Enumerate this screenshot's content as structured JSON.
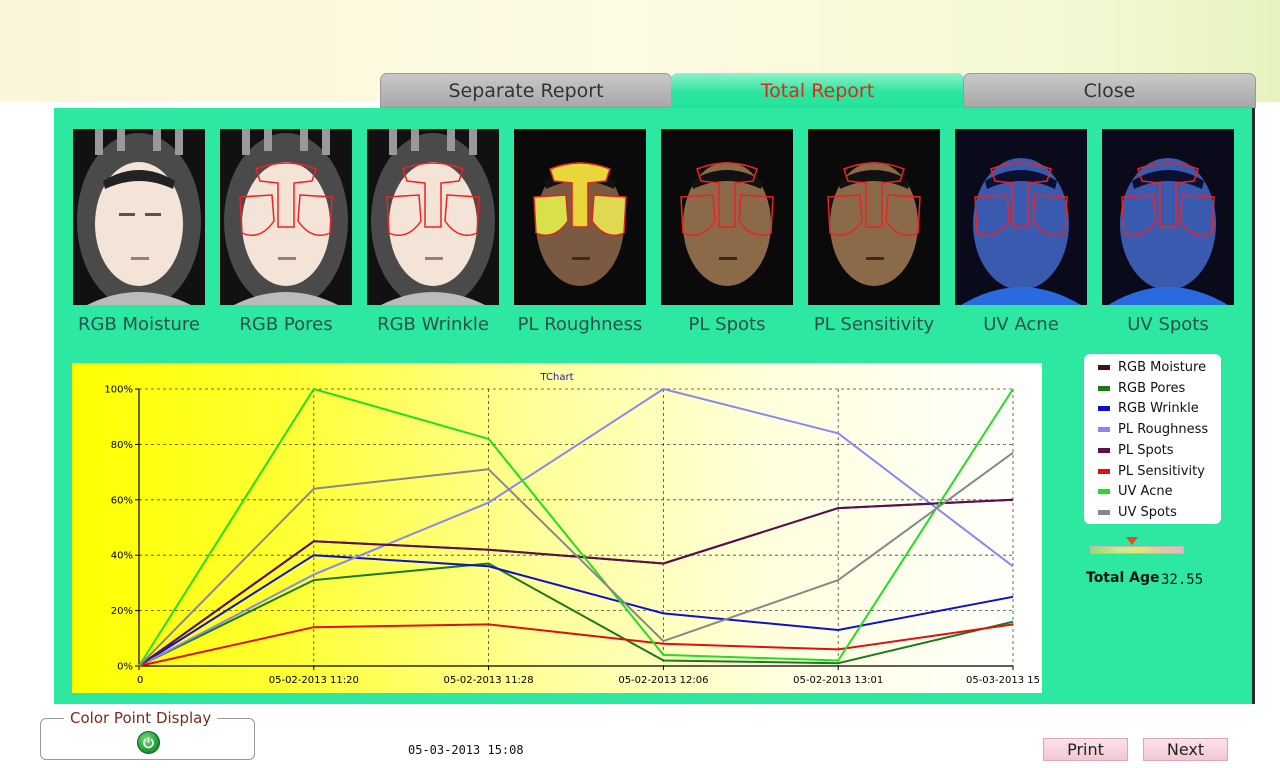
{
  "tabs": [
    {
      "label": "Separate Report",
      "active": false
    },
    {
      "label": "Total Report",
      "active": true
    },
    {
      "label": "Close",
      "active": false
    }
  ],
  "thumbnails": [
    {
      "label": "RGB Moisture"
    },
    {
      "label": "RGB Pores"
    },
    {
      "label": "RGB Wrinkle"
    },
    {
      "label": "PL Roughness"
    },
    {
      "label": "PL Spots"
    },
    {
      "label": "PL Sensitivity"
    },
    {
      "label": "UV Acne"
    },
    {
      "label": "UV Spots"
    }
  ],
  "chart_data": {
    "type": "line",
    "title": "TChart",
    "x": [
      "0",
      "05-02-2013 11:20",
      "05-02-2013 11:28",
      "05-02-2013 12:06",
      "05-02-2013 13:01",
      "05-03-2013 15"
    ],
    "y_ticks": [
      "0%",
      "20%",
      "40%",
      "60%",
      "80%",
      "100%"
    ],
    "ylim": [
      0,
      100
    ],
    "grid": true,
    "legend_position": "right",
    "series": [
      {
        "name": "RGB Moisture",
        "color": "#4a1010",
        "values": [
          0,
          45,
          42,
          37,
          57,
          60
        ]
      },
      {
        "name": "RGB Pores",
        "color": "#1a7a1a",
        "values": [
          0,
          31,
          37,
          2,
          1,
          16
        ]
      },
      {
        "name": "RGB Wrinkle",
        "color": "#1010c8",
        "values": [
          0,
          40,
          36,
          19,
          13,
          25
        ]
      },
      {
        "name": "PL Roughness",
        "color": "#8888ee",
        "values": [
          0,
          33,
          59,
          100,
          84,
          36
        ]
      },
      {
        "name": "PL Spots",
        "color": "#5a1050",
        "values": [
          0,
          45,
          42,
          37,
          57,
          60
        ]
      },
      {
        "name": "PL Sensitivity",
        "color": "#dd1010",
        "values": [
          0,
          14,
          15,
          8,
          6,
          15
        ]
      },
      {
        "name": "UV Acne",
        "color": "#22dd22",
        "values": [
          0,
          100,
          82,
          4,
          2,
          100
        ]
      },
      {
        "name": "UV Spots",
        "color": "#888888",
        "values": [
          0,
          64,
          71,
          9,
          31,
          77
        ]
      }
    ]
  },
  "total_age": {
    "label": "Total Age",
    "value": "32.55",
    "gauge_level": 0.45
  },
  "color_point": {
    "title": "Color Point Display"
  },
  "timestamp": "05-03-2013 15:08",
  "buttons": {
    "print": "Print",
    "next": "Next"
  }
}
